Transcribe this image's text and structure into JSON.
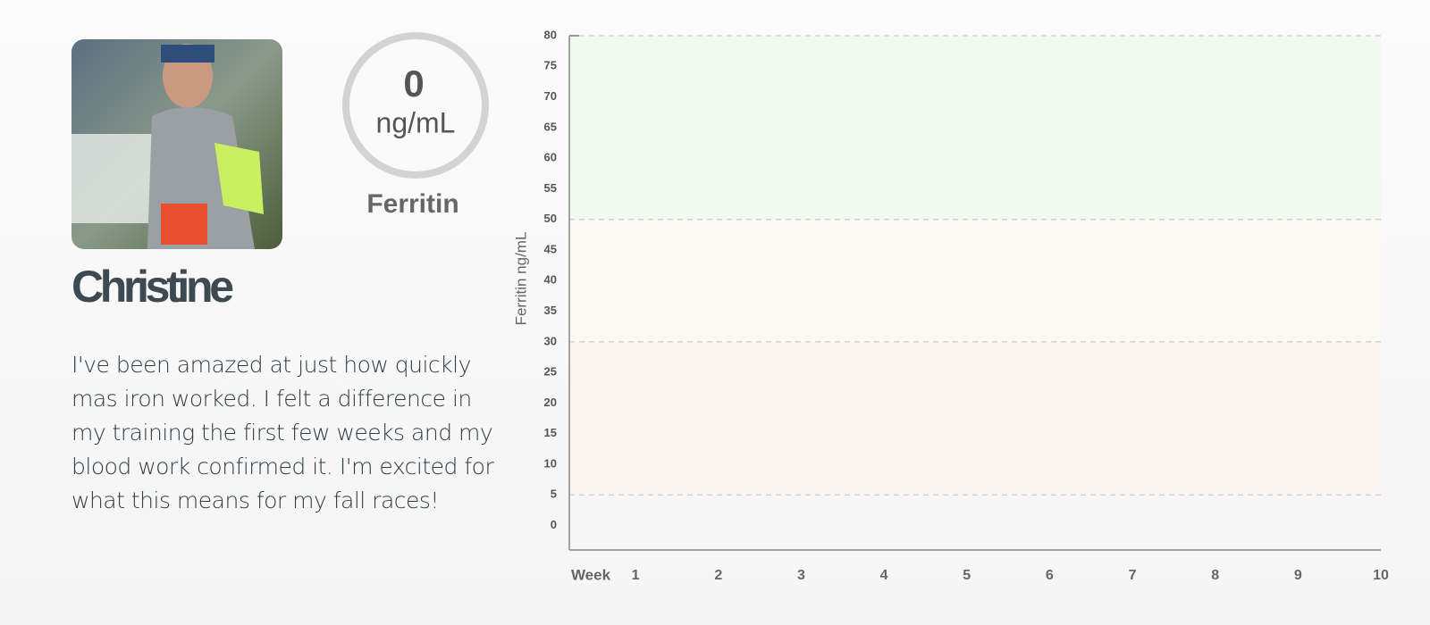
{
  "profile": {
    "name": "Christine",
    "quote": "I've been amazed at just how quickly mas iron worked. I felt a difference in my training the first few weeks and my blood work confirmed it. I'm excited for what this means for my fall races!"
  },
  "gauge": {
    "value": "0",
    "unit": "ng/mL",
    "label": "Ferritin"
  },
  "chart_data": {
    "type": "line",
    "ylabel": "Ferritin ng/mL",
    "xlabel": "Week",
    "series": [],
    "xlim": [
      0.2,
      10
    ],
    "xticks": [
      1,
      2,
      3,
      4,
      5,
      6,
      7,
      8,
      9,
      10
    ],
    "ylim": [
      -4,
      80
    ],
    "yticks": [
      0,
      5,
      10,
      15,
      20,
      25,
      30,
      35,
      40,
      45,
      50,
      55,
      60,
      65,
      70,
      75,
      80
    ],
    "bands": [
      {
        "from": 50,
        "to": 80,
        "color": "#f1f9f0"
      },
      {
        "from": 30,
        "to": 50,
        "color": "#fcf9f5"
      },
      {
        "from": 5,
        "to": 30,
        "color": "#fbf4f1"
      }
    ]
  }
}
